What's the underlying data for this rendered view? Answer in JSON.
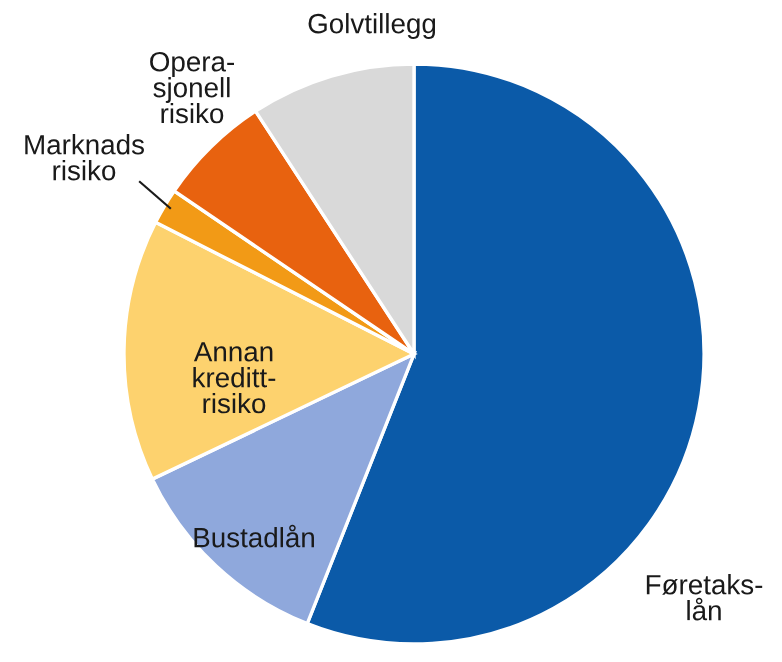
{
  "chart_data": {
    "type": "pie",
    "categories": [
      "Føretaks-\nlån",
      "Bustadlån",
      "Annan\nkreditt-\nrisiko",
      "Marknads\nrisiko",
      "Opera-\nsjonell\nrisiko",
      "Golvtillegg"
    ],
    "values": [
      56,
      11.9,
      14.6,
      2,
      6.3,
      9.2
    ],
    "colors": [
      "#0b5aa8",
      "#8fa8dc",
      "#fdd26e",
      "#f29a16",
      "#e8620f",
      "#d9d9d9"
    ],
    "legend": false
  }
}
